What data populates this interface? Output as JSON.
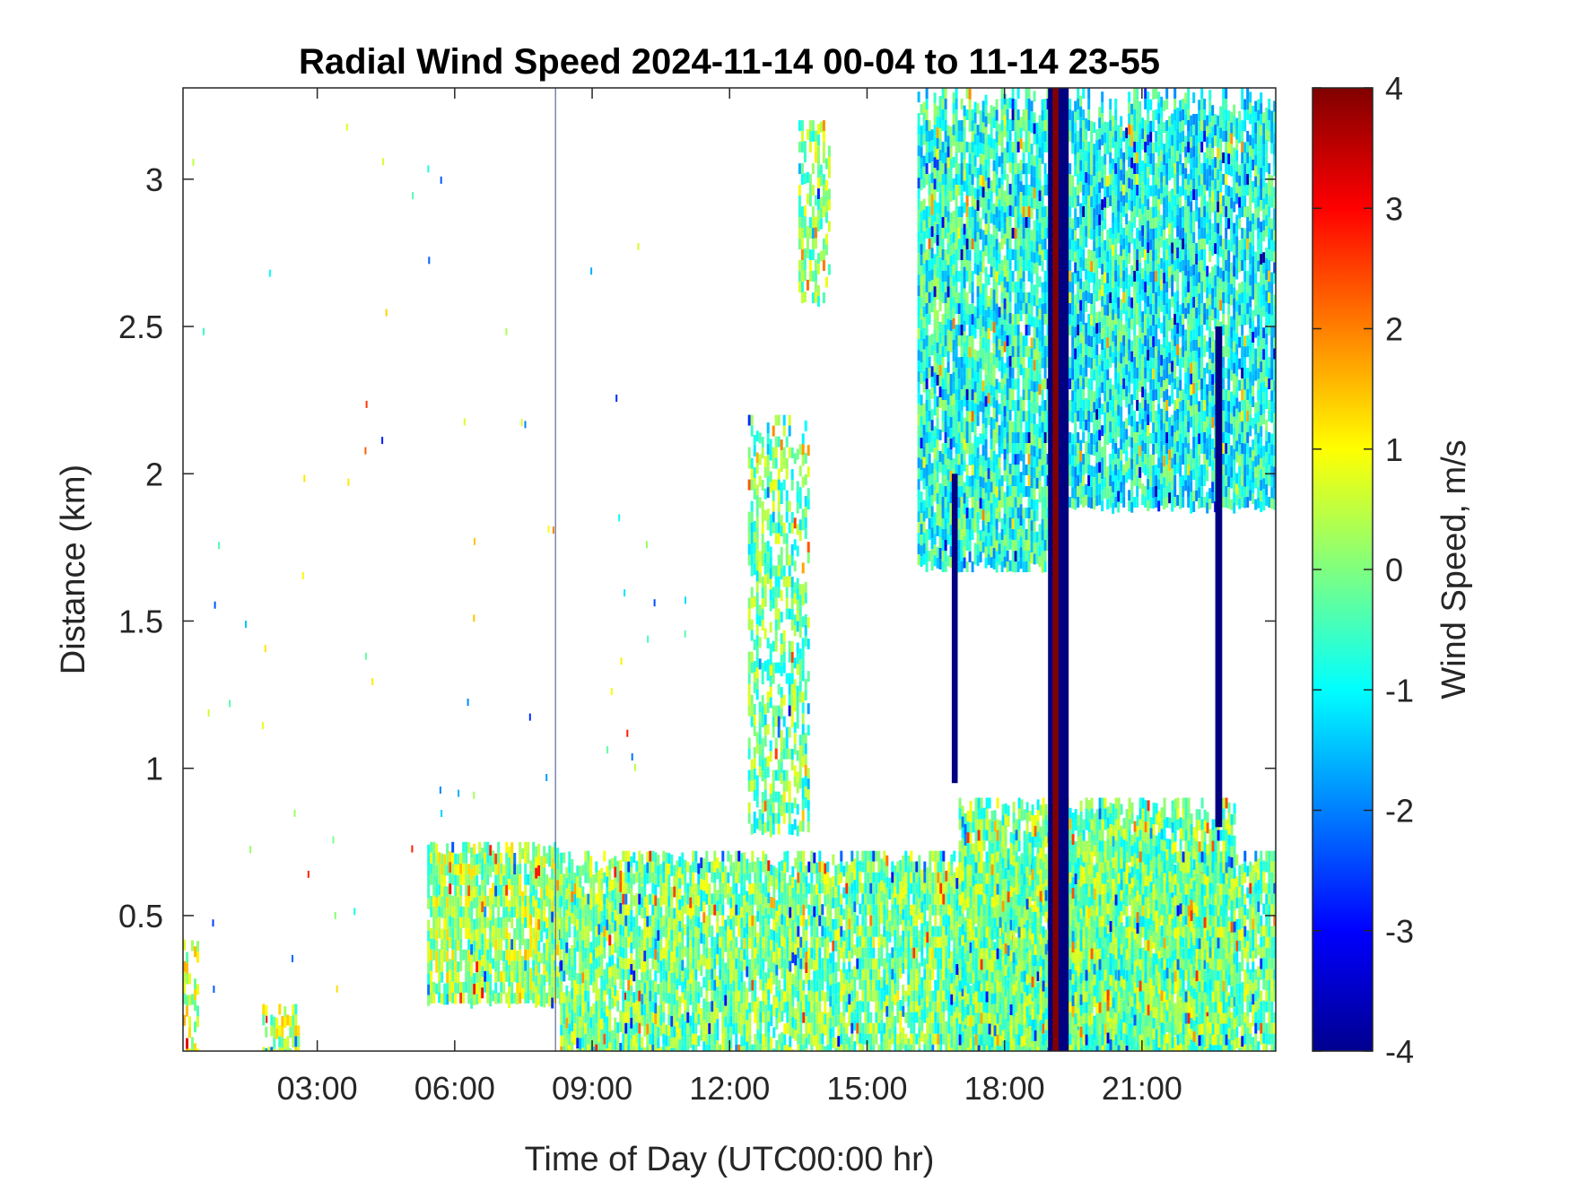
{
  "chart_data": {
    "type": "heatmap",
    "title": "Radial Wind Speed 2024-11-14 00-04 to 11-14 23-55",
    "xlabel": "Time of Day (UTC00:00 hr)",
    "ylabel": "Distance (km)",
    "colorbar_label": "Wind Speed, m/s",
    "colormap": "jet",
    "xlim": [
      0.07,
      23.92
    ],
    "ylim": [
      0.04,
      3.31
    ],
    "clim": [
      -4,
      4
    ],
    "x_ticks": [
      {
        "value": 3,
        "label": "03:00"
      },
      {
        "value": 6,
        "label": "06:00"
      },
      {
        "value": 9,
        "label": "09:00"
      },
      {
        "value": 12,
        "label": "12:00"
      },
      {
        "value": 15,
        "label": "15:00"
      },
      {
        "value": 18,
        "label": "18:00"
      },
      {
        "value": 21,
        "label": "21:00"
      }
    ],
    "y_ticks": [
      {
        "value": 0.5,
        "label": "0.5"
      },
      {
        "value": 1,
        "label": "1"
      },
      {
        "value": 1.5,
        "label": "1.5"
      },
      {
        "value": 2,
        "label": "2"
      },
      {
        "value": 2.5,
        "label": "2.5"
      },
      {
        "value": 3,
        "label": "3"
      }
    ],
    "colorbar_ticks": [
      {
        "value": 4,
        "label": "4"
      },
      {
        "value": 3,
        "label": "3"
      },
      {
        "value": 2,
        "label": "2"
      },
      {
        "value": 1,
        "label": "1"
      },
      {
        "value": 0,
        "label": "0"
      },
      {
        "value": -1,
        "label": "-1"
      },
      {
        "value": -2,
        "label": "-2"
      },
      {
        "value": -3,
        "label": "-3"
      },
      {
        "value": -4,
        "label": "-4"
      }
    ],
    "regions": [
      {
        "name": "early-surface-echo",
        "t0": 0.07,
        "t1": 0.4,
        "d0": 0.04,
        "d1": 0.45,
        "speed": 0.6
      },
      {
        "name": "early-burst",
        "t0": 1.8,
        "t1": 2.6,
        "d0": 0.04,
        "d1": 0.2,
        "speed": 0.4
      },
      {
        "name": "morning-boundary-layer",
        "t0": 5.4,
        "t1": 8.3,
        "d0": 0.22,
        "d1": 0.75,
        "speed": 0.2
      },
      {
        "name": "daytime-boundary-layer",
        "t0": 8.3,
        "t1": 23.92,
        "d0": 0.04,
        "d1": 0.72,
        "speed": -0.1
      },
      {
        "name": "rising-plume-1",
        "t0": 12.4,
        "t1": 13.7,
        "d0": 0.8,
        "d1": 2.2,
        "speed": -0.2
      },
      {
        "name": "upper-cloud-patch",
        "t0": 13.5,
        "t1": 14.2,
        "d0": 2.6,
        "d1": 3.2,
        "speed": 0.1
      },
      {
        "name": "upper-layer-afternoon",
        "t0": 16.1,
        "t1": 19.0,
        "d0": 1.7,
        "d1": 3.31,
        "speed": -0.7
      },
      {
        "name": "upper-layer-evening",
        "t0": 19.4,
        "t1": 23.92,
        "d0": 1.9,
        "d1": 3.31,
        "speed": -0.9
      },
      {
        "name": "lower-layer-evening",
        "t0": 17.0,
        "t1": 23.0,
        "d0": 0.04,
        "d1": 0.9,
        "speed": -0.1
      }
    ],
    "vertical_bands": [
      {
        "name": "rain-band-19h",
        "t0": 18.95,
        "t1": 19.4,
        "d0": 0.04,
        "d1": 3.31,
        "speed": -4
      },
      {
        "name": "rain-core-19h",
        "t0": 19.05,
        "t1": 19.18,
        "d0": 0.04,
        "d1": 3.31,
        "speed": 4
      },
      {
        "name": "fallstreak-17h",
        "t0": 16.85,
        "t1": 16.98,
        "d0": 0.95,
        "d1": 2.0,
        "speed": -4
      },
      {
        "name": "fallstreak-22h",
        "t0": 22.6,
        "t1": 22.75,
        "d0": 0.8,
        "d1": 2.5,
        "speed": -4
      }
    ],
    "thin_line": {
      "time": 8.2,
      "color": "#5a6a9a"
    }
  }
}
